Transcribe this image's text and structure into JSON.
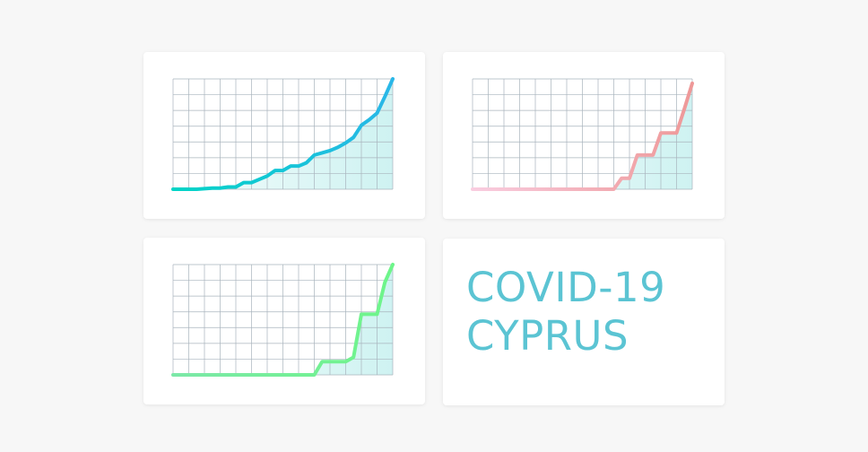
{
  "title": {
    "line1": "COVID-19",
    "line2": "CYPRUS"
  },
  "chart_data": [
    {
      "type": "line",
      "x": [
        0,
        1,
        2,
        3,
        4,
        5,
        6,
        7,
        8,
        9,
        10,
        11,
        12,
        13,
        14,
        15,
        16,
        17,
        18,
        19,
        20,
        21,
        22,
        23,
        24,
        25,
        26,
        27,
        28
      ],
      "y": [
        0,
        0,
        0,
        0,
        0.5,
        1,
        1,
        2,
        2,
        6,
        6,
        9,
        12,
        17,
        17,
        21,
        21,
        24,
        31,
        33,
        35,
        38,
        42,
        47,
        58,
        63,
        69,
        84,
        100
      ],
      "ylim": [
        0,
        100
      ],
      "grid": true,
      "colors": {
        "start": "#00d4c6",
        "end": "#2ab7e8",
        "fill": "#c9f1f0"
      }
    },
    {
      "type": "line",
      "x": [
        0,
        1,
        2,
        3,
        4,
        5,
        6,
        7,
        8,
        9,
        10,
        11,
        12,
        13,
        14,
        15,
        16,
        17,
        18,
        19,
        20,
        21,
        22,
        23,
        24,
        25,
        26,
        27,
        28
      ],
      "y": [
        0,
        0,
        0,
        0,
        0,
        0,
        0,
        0,
        0,
        0,
        0,
        0,
        0,
        0,
        0,
        0,
        0,
        0,
        0,
        10,
        10,
        31,
        31,
        31,
        51,
        51,
        51,
        73,
        96
      ],
      "ylim": [
        0,
        100
      ],
      "grid": true,
      "colors": {
        "start": "#f9cde0",
        "end": "#ee9898",
        "fill": "#c9f1f0"
      }
    },
    {
      "type": "line",
      "x": [
        0,
        1,
        2,
        3,
        4,
        5,
        6,
        7,
        8,
        9,
        10,
        11,
        12,
        13,
        14,
        15,
        16,
        17,
        18,
        19,
        20,
        21,
        22,
        23,
        24,
        25,
        26,
        27,
        28
      ],
      "y": [
        0,
        0,
        0,
        0,
        0,
        0,
        0,
        0,
        0,
        0,
        0,
        0,
        0,
        0,
        0,
        0,
        0,
        0,
        0,
        12,
        12,
        12,
        12,
        16,
        55,
        55,
        55,
        84,
        100
      ],
      "ylim": [
        0,
        100
      ],
      "grid": true,
      "colors": {
        "start": "#7ce8a8",
        "end": "#6ef58a",
        "fill": "#c9f1f0"
      }
    }
  ]
}
